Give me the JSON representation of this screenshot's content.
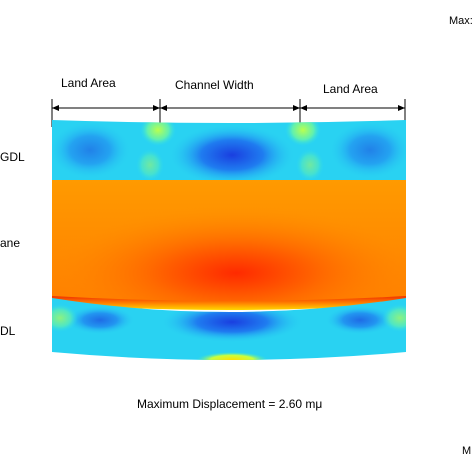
{
  "legend": {
    "max_top_label": "Max:",
    "max_bottom_label": "M"
  },
  "dimensions": {
    "land_area_left": "Land Area",
    "channel_width": "Channel Width",
    "land_area_right": "Land Area"
  },
  "layers": {
    "top_gdl": "GDL",
    "membrane": "ane",
    "bottom_gdl": "DL"
  },
  "caption": {
    "prefix": "Maximum Displacement = ",
    "value": "2.60",
    "unit": "mμ"
  },
  "colors": {
    "gdl_base": "#29d2f2",
    "gdl_hot": "#1c63e8",
    "membrane_base": "#ff8e00",
    "membrane_center": "#ff3a00",
    "interface_red": "#f03000",
    "interface_yellow": "#ffd800"
  }
}
